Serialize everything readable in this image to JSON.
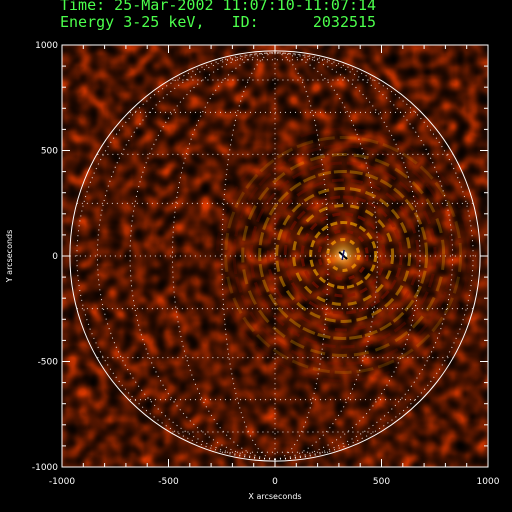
{
  "header": {
    "line1": "Time: 25-Mar-2002 11:07:10-11:07:14",
    "line2": "Energy 3-25 keV,   ID:      2032515"
  },
  "axes": {
    "xlabel": "X arcseconds",
    "ylabel": "Y arcseconds",
    "xlim": [
      -1000,
      1000
    ],
    "ylim": [
      -1000,
      1000
    ],
    "xticks": [
      "-1000",
      "-500",
      "0",
      "500",
      "1000"
    ],
    "yticks": [
      "1000",
      "500",
      "0",
      "-500",
      "-1000"
    ]
  },
  "image": {
    "description_colormap": "red-temperature",
    "solar_limb_radius_arcsec": 963,
    "source_center_arcsec": [
      320,
      5
    ],
    "grid_step_deg": 15
  },
  "colors": {
    "title": "#4cff4c",
    "background": "#000000",
    "axes": "#ffffff",
    "map_base": "#e23a00"
  }
}
